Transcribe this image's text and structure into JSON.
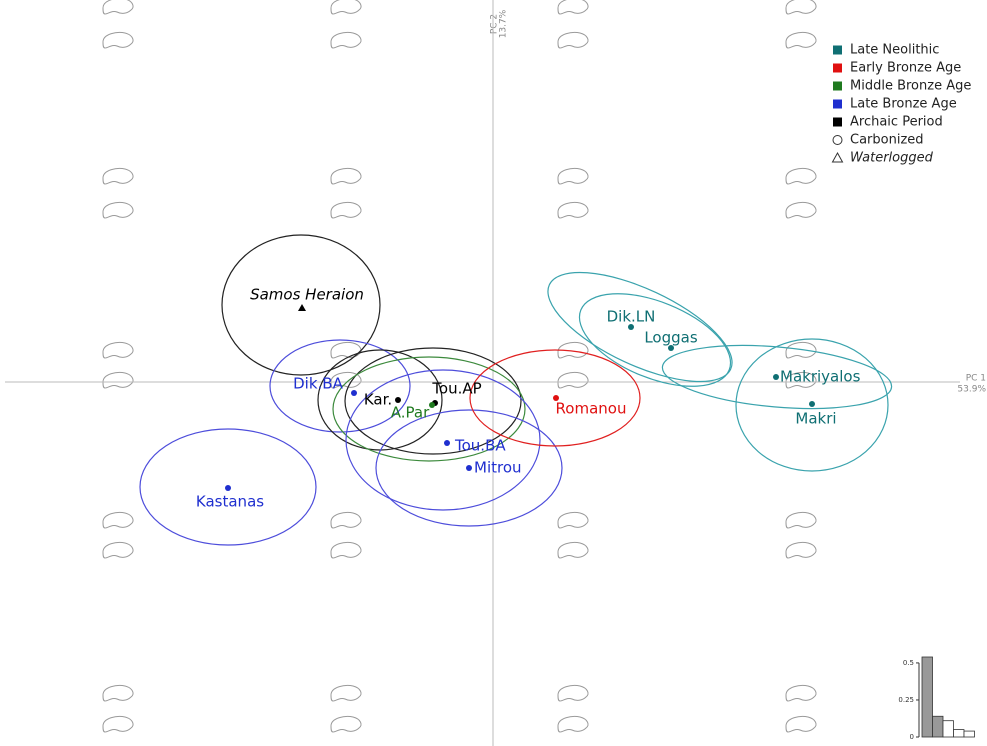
{
  "chart_data": [
    {
      "type": "scatter",
      "xlabel": "PC 1",
      "xlabel_variance": "53.9%",
      "ylabel": "PC 2",
      "ylabel_variance": "13.7%",
      "xlim": [
        -4.93,
        4.94
      ],
      "ylim": [
        -3.64,
        3.82
      ],
      "groups": [
        {
          "name": "Late Neolithic",
          "color": "#0f6f73",
          "ellipse_color": "#3aa3ad"
        },
        {
          "name": "Early Bronze Age",
          "color": "#e01010",
          "ellipse_color": "#e02020"
        },
        {
          "name": "Middle Bronze Age",
          "color": "#1f7a1f",
          "ellipse_color": "#3c8a3c"
        },
        {
          "name": "Late Bronze Age",
          "color": "#1f2fcf",
          "ellipse_color": "#4d4ddb"
        },
        {
          "name": "Archaic Period",
          "color": "#000000",
          "ellipse_color": "#222222"
        }
      ],
      "markers": [
        {
          "name": "Carbonized",
          "marker": "circle",
          "italic": false
        },
        {
          "name": "Waterlogged",
          "marker": "triangle",
          "italic": true
        }
      ],
      "points": [
        {
          "label": "Samos Heraion",
          "group": "Archaic Period",
          "marker": "triangle",
          "x": -1.91,
          "y": 0.74,
          "ellipse": {
            "cx": -1.92,
            "cy": 0.77,
            "rx": 0.79,
            "ry": 0.7,
            "angle": 0
          }
        },
        {
          "label": "Dik.BA",
          "group": "Late Bronze Age",
          "marker": "circle",
          "x": -1.39,
          "y": -0.11,
          "ellipse": {
            "cx": -1.53,
            "cy": -0.04,
            "rx": 0.7,
            "ry": 0.46,
            "angle": 0
          }
        },
        {
          "label": "Kar.",
          "group": "Archaic Period",
          "marker": "circle",
          "x": -0.95,
          "y": -0.18,
          "ellipse": {
            "cx": -1.13,
            "cy": -0.18,
            "rx": 0.62,
            "ry": 0.5,
            "angle": 0
          }
        },
        {
          "label": "Tou.AP",
          "group": "Archaic Period",
          "marker": "circle",
          "x": -0.58,
          "y": -0.21,
          "ellipse": {
            "cx": -0.6,
            "cy": -0.19,
            "rx": 0.88,
            "ry": 0.53,
            "angle": 0
          }
        },
        {
          "label": "A.Par",
          "group": "Middle Bronze Age",
          "marker": "circle",
          "x": -0.61,
          "y": -0.23,
          "ellipse": {
            "cx": -0.64,
            "cy": -0.27,
            "rx": 0.96,
            "ry": 0.52,
            "angle": 0
          }
        },
        {
          "label": "Tou.BA",
          "group": "Late Bronze Age",
          "marker": "circle",
          "x": -0.46,
          "y": -0.61,
          "ellipse": {
            "cx": -0.5,
            "cy": -0.58,
            "rx": 0.97,
            "ry": 0.7,
            "angle": 0
          }
        },
        {
          "label": "Mitrou",
          "group": "Late Bronze Age",
          "marker": "circle",
          "x": -0.24,
          "y": -0.86,
          "ellipse": {
            "cx": -0.24,
            "cy": -0.86,
            "rx": 0.93,
            "ry": 0.58,
            "angle": 0
          }
        },
        {
          "label": "Kastanas",
          "group": "Late Bronze Age",
          "marker": "circle",
          "x": -2.65,
          "y": -1.06,
          "ellipse": {
            "cx": -2.65,
            "cy": -1.05,
            "rx": 0.88,
            "ry": 0.58,
            "angle": 0
          }
        },
        {
          "label": "Romanou",
          "group": "Early Bronze Age",
          "marker": "circle",
          "x": 0.63,
          "y": -0.16,
          "ellipse": {
            "cx": 0.62,
            "cy": -0.16,
            "rx": 0.85,
            "ry": 0.48,
            "angle": 0
          }
        },
        {
          "label": "Dik.LN",
          "group": "Late Neolithic",
          "marker": "circle",
          "x": 1.38,
          "y": 0.55,
          "ellipse": {
            "cx": 1.47,
            "cy": 0.55,
            "rx": 1.0,
            "ry": 0.38,
            "angle": -25
          }
        },
        {
          "label": "Loggas",
          "group": "Late Neolithic",
          "marker": "circle",
          "x": 1.78,
          "y": 0.34,
          "ellipse": {
            "cx": 1.62,
            "cy": 0.42,
            "rx": 0.8,
            "ry": 0.38,
            "angle": -22
          }
        },
        {
          "label": "Makriyalos",
          "group": "Late Neolithic",
          "marker": "circle",
          "x": 2.83,
          "y": 0.05,
          "ellipse": {
            "cx": 2.84,
            "cy": 0.05,
            "rx": 1.15,
            "ry": 0.3,
            "angle": -5
          }
        },
        {
          "label": "Makri",
          "group": "Late Neolithic",
          "marker": "circle",
          "x": 3.19,
          "y": -0.22,
          "ellipse": {
            "cx": 3.19,
            "cy": -0.23,
            "rx": 0.76,
            "ry": 0.66,
            "angle": 0
          }
        }
      ]
    },
    {
      "type": "bar",
      "values": [
        0.54,
        0.14,
        0.11,
        0.05,
        0.04
      ],
      "colors": [
        "#999999",
        "#999999",
        "#ffffff",
        "#ffffff",
        "#ffffff"
      ],
      "ylim": [
        0,
        0.54
      ],
      "yticks": [
        0,
        0.25,
        0.5
      ]
    }
  ]
}
